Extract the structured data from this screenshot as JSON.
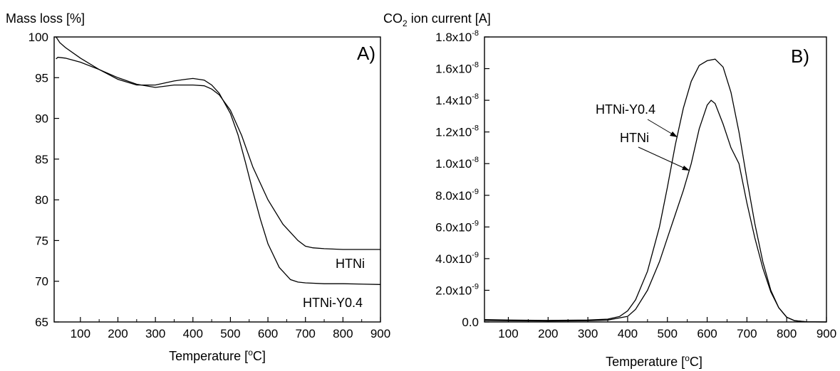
{
  "chart_data": [
    {
      "type": "line",
      "panel_label": "A)",
      "ylabel": "Mass loss [%]",
      "xlabel_parts": [
        "Temperature [",
        "o",
        "C]"
      ],
      "xlim": [
        30,
        900
      ],
      "ylim": [
        65,
        100
      ],
      "xticks": [
        100,
        200,
        300,
        400,
        500,
        600,
        700,
        800,
        900
      ],
      "yticks": [
        65,
        70,
        75,
        80,
        85,
        90,
        95,
        100
      ],
      "series": [
        {
          "name": "HTNi",
          "x": [
            35,
            40,
            60,
            100,
            150,
            200,
            250,
            300,
            350,
            400,
            430,
            450,
            470,
            500,
            530,
            560,
            600,
            640,
            680,
            700,
            720,
            750,
            800,
            900
          ],
          "y": [
            97.3,
            97.5,
            97.4,
            96.9,
            96.0,
            95.0,
            94.2,
            93.8,
            94.1,
            94.1,
            94.0,
            93.6,
            92.9,
            91.0,
            87.9,
            84.0,
            80.0,
            77.0,
            75.0,
            74.3,
            74.1,
            74.0,
            73.9,
            73.9
          ]
        },
        {
          "name": "HTNi-Y0.4",
          "x": [
            35,
            38,
            45,
            60,
            100,
            150,
            200,
            250,
            300,
            350,
            380,
            400,
            430,
            450,
            470,
            500,
            520,
            540,
            560,
            580,
            600,
            630,
            660,
            680,
            700,
            750,
            800,
            900
          ],
          "y": [
            100,
            99.8,
            99.3,
            98.7,
            97.4,
            96.0,
            94.8,
            94.1,
            94.1,
            94.6,
            94.8,
            94.9,
            94.7,
            94.1,
            93.1,
            90.6,
            88.0,
            84.6,
            81.0,
            77.6,
            74.6,
            71.7,
            70.2,
            69.9,
            69.8,
            69.7,
            69.7,
            69.6
          ]
        }
      ],
      "labels": [
        "HTNi",
        "HTNi-Y0.4"
      ]
    },
    {
      "type": "line",
      "panel_label": "B)",
      "ylabel_parts": [
        "CO",
        "2",
        " ion current [A]"
      ],
      "xlabel_parts": [
        "Temperature [",
        "o",
        "C]"
      ],
      "xlim": [
        40,
        900
      ],
      "ylim": [
        0,
        1.8e-08
      ],
      "xticks": [
        100,
        200,
        300,
        400,
        500,
        600,
        700,
        800,
        900
      ],
      "yticks": [
        {
          "value": 0,
          "mantissa": "0.0",
          "exp": ""
        },
        {
          "value": 2e-09,
          "mantissa": "2.0x10",
          "exp": "-9"
        },
        {
          "value": 4e-09,
          "mantissa": "4.0x10",
          "exp": "-9"
        },
        {
          "value": 6e-09,
          "mantissa": "6.0x10",
          "exp": "-9"
        },
        {
          "value": 8e-09,
          "mantissa": "8.0x10",
          "exp": "-9"
        },
        {
          "value": 1e-08,
          "mantissa": "1.0x10",
          "exp": "-8"
        },
        {
          "value": 1.2e-08,
          "mantissa": "1.2x10",
          "exp": "-8"
        },
        {
          "value": 1.4e-08,
          "mantissa": "1.4x10",
          "exp": "-8"
        },
        {
          "value": 1.6e-08,
          "mantissa": "1.6x10",
          "exp": "-8"
        },
        {
          "value": 1.8e-08,
          "mantissa": "1.8x10",
          "exp": "-8"
        }
      ],
      "series": [
        {
          "name": "HTNi-Y0.4",
          "x": [
            40,
            100,
            200,
            300,
            350,
            380,
            400,
            420,
            450,
            480,
            500,
            520,
            540,
            560,
            580,
            600,
            620,
            640,
            660,
            680,
            700,
            720,
            740,
            760,
            780,
            800,
            820,
            850,
            900
          ],
          "y": [
            1.5e-10,
            1.2e-10,
            1e-10,
            1.2e-10,
            1.8e-10,
            3.5e-10,
            7e-10,
            1.4e-09,
            3.2e-09,
            6e-09,
            8.5e-09,
            1.12e-08,
            1.35e-08,
            1.52e-08,
            1.62e-08,
            1.65e-08,
            1.66e-08,
            1.61e-08,
            1.45e-08,
            1.2e-08,
            9e-09,
            6.2e-09,
            3.8e-09,
            2e-09,
            9e-10,
            3e-10,
            8e-11,
            1e-11,
            0
          ]
        },
        {
          "name": "HTNi",
          "x": [
            40,
            100,
            200,
            300,
            350,
            400,
            420,
            450,
            480,
            500,
            520,
            540,
            560,
            580,
            600,
            610,
            620,
            640,
            660,
            680,
            700,
            720,
            740,
            760,
            780,
            800,
            820,
            850,
            900
          ],
          "y": [
            1e-10,
            8e-11,
            6e-11,
            8e-11,
            1.2e-10,
            3.5e-10,
            8e-10,
            2e-09,
            3.8e-09,
            5.3e-09,
            6.8e-09,
            8.3e-09,
            1e-08,
            1.22e-08,
            1.37e-08,
            1.4e-08,
            1.38e-08,
            1.25e-08,
            1.1e-08,
            1e-08,
            7.5e-09,
            5.3e-09,
            3.4e-09,
            1.9e-09,
            9e-10,
            3e-10,
            8e-11,
            1e-11,
            0
          ]
        }
      ],
      "labels": [
        "HTNi-Y0.4",
        "HTNi"
      ]
    }
  ]
}
